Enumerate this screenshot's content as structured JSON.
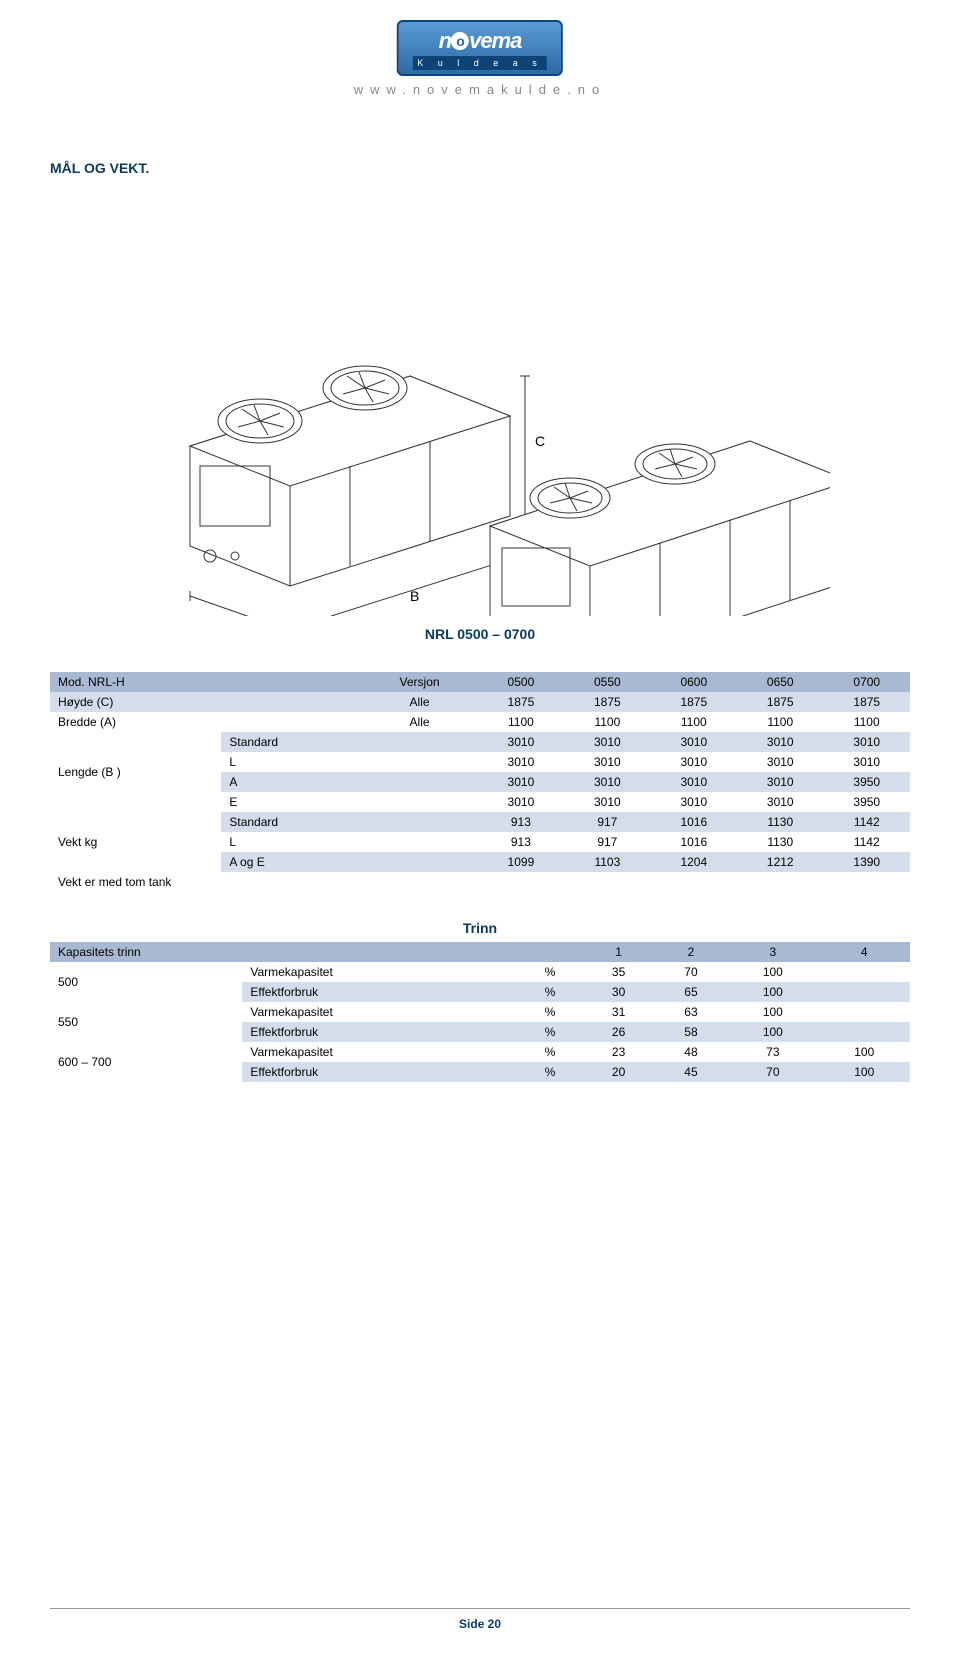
{
  "logo": {
    "brand": "novema",
    "sub": "K u l d e a s",
    "url": "www.novemakulde.no"
  },
  "section_title": "MÅL OG VEKT.",
  "diagram_caption": "NRL 0500 – 0700",
  "table1": {
    "header": [
      "Mod. NRL-H",
      "Versjon",
      "0500",
      "0550",
      "0600",
      "0650",
      "0700"
    ],
    "rows": [
      {
        "label": "Høyde (C)",
        "sub": "Alle",
        "vals": [
          "1875",
          "1875",
          "1875",
          "1875",
          "1875"
        ],
        "band": true
      },
      {
        "label": "Bredde (A)",
        "sub": "Alle",
        "vals": [
          "1100",
          "1100",
          "1100",
          "1100",
          "1100"
        ],
        "band": false
      },
      {
        "label": "Lengde (B )",
        "rowspan": 4,
        "subrows": [
          {
            "sub": "Standard",
            "vals": [
              "3010",
              "3010",
              "3010",
              "3010",
              "3010"
            ],
            "band": true
          },
          {
            "sub": "L",
            "vals": [
              "3010",
              "3010",
              "3010",
              "3010",
              "3010"
            ],
            "band": false
          },
          {
            "sub": "A",
            "vals": [
              "3010",
              "3010",
              "3010",
              "3010",
              "3950"
            ],
            "band": true
          },
          {
            "sub": "E",
            "vals": [
              "3010",
              "3010",
              "3010",
              "3010",
              "3950"
            ],
            "band": false
          }
        ]
      },
      {
        "label": "Vekt kg",
        "rowspan": 3,
        "subrows": [
          {
            "sub": "Standard",
            "vals": [
              "913",
              "917",
              "1016",
              "1130",
              "1142"
            ],
            "band": true
          },
          {
            "sub": "L",
            "vals": [
              "913",
              "917",
              "1016",
              "1130",
              "1142"
            ],
            "band": false
          },
          {
            "sub": "A og E",
            "vals": [
              "1099",
              "1103",
              "1204",
              "1212",
              "1390"
            ],
            "band": true
          }
        ]
      }
    ],
    "footnote": "Vekt er med tom tank"
  },
  "trinn_title": "Trinn",
  "table2": {
    "header": [
      "Kapasitets trinn",
      "",
      "1",
      "2",
      "3",
      "4"
    ],
    "groups": [
      {
        "label": "500",
        "rows": [
          {
            "name": "Varmekapasitet",
            "unit": "%",
            "vals": [
              "35",
              "70",
              "100",
              ""
            ],
            "band": false
          },
          {
            "name": "Effektforbruk",
            "unit": "%",
            "vals": [
              "30",
              "65",
              "100",
              ""
            ],
            "band": true
          }
        ]
      },
      {
        "label": "550",
        "rows": [
          {
            "name": "Varmekapasitet",
            "unit": "%",
            "vals": [
              "31",
              "63",
              "100",
              ""
            ],
            "band": false
          },
          {
            "name": "Effektforbruk",
            "unit": "%",
            "vals": [
              "26",
              "58",
              "100",
              ""
            ],
            "band": true
          }
        ]
      },
      {
        "label": "600 – 700",
        "rows": [
          {
            "name": "Varmekapasitet",
            "unit": "%",
            "vals": [
              "23",
              "48",
              "73",
              "100"
            ],
            "band": false
          },
          {
            "name": "Effektforbruk",
            "unit": "%",
            "vals": [
              "20",
              "45",
              "70",
              "100"
            ],
            "band": true
          }
        ]
      }
    ]
  },
  "footer": "Side 20",
  "colors": {
    "header_band": "#a8b9d1",
    "alt_band": "#d4dde9",
    "heading": "#0d3a63"
  }
}
